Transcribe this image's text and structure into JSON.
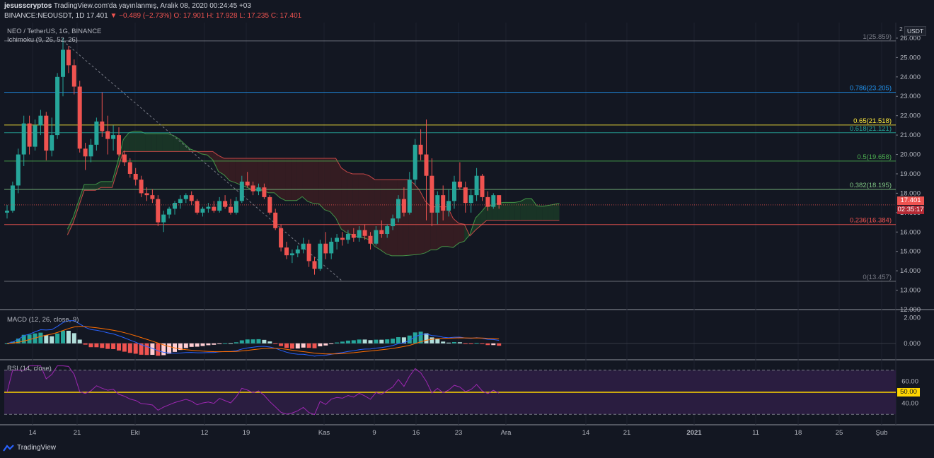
{
  "header": {
    "author": "jesusscryptos",
    "published": "TradingView.com'da yayınlanmış, Aralık 08, 2020 00:24:45 +03",
    "symbol_line": "BINANCE:NEOUSDT, 1D",
    "last": "17.401",
    "change": "▼ −0.489 (−2.73%)",
    "open": "O: 17.901",
    "high": "H: 17.928",
    "low": "L: 17.235",
    "close": "C: 17.401"
  },
  "main_panel": {
    "title": "NEO / TetherUS, 1G, BINANCE",
    "indicator": "Ichimoku (9, 26, 52, 26)",
    "unit": "USDT",
    "price_ticks": [
      "26.000",
      "25.000",
      "24.000",
      "23.000",
      "22.000",
      "21.000",
      "20.000",
      "19.000",
      "18.000",
      "17.000",
      "16.000",
      "15.000",
      "14.000",
      "13.000",
      "12.000"
    ],
    "current_price": "17.401",
    "countdown": "02:35:17",
    "axis_top_label": "2"
  },
  "fib_levels": [
    {
      "label": "1(25.859)",
      "value": 25.859,
      "color": "#787b86"
    },
    {
      "label": "0.786(23.205)",
      "value": 23.205,
      "color": "#2196f3"
    },
    {
      "label": "0.65(21.518)",
      "value": 21.518,
      "color": "#ffeb3b"
    },
    {
      "label": "0.618(21.121)",
      "value": 21.121,
      "color": "#26a69a"
    },
    {
      "label": "0.5(19.658)",
      "value": 19.658,
      "color": "#4caf50"
    },
    {
      "label": "0.382(18.195)",
      "value": 18.195,
      "color": "#81c784"
    },
    {
      "label": "0.236(16.384)",
      "value": 16.384,
      "color": "#ef5350"
    },
    {
      "label": "0(13.457)",
      "value": 13.457,
      "color": "#787b86"
    }
  ],
  "macd_panel": {
    "label": "MACD (12, 26, close, 9)",
    "ticks": [
      "2.000",
      "0.000"
    ]
  },
  "rsi_panel": {
    "label": "RSI (14, close)",
    "ticks": [
      "60.00",
      "40.00"
    ],
    "value_badge": "50.00"
  },
  "time_axis": [
    "14",
    "21",
    "Eki",
    "12",
    "19",
    "Kas",
    "9",
    "16",
    "23",
    "Ara",
    "14",
    "21",
    "2021",
    "11",
    "18",
    "25",
    "Şub"
  ],
  "footer": {
    "brand": "TradingView"
  },
  "colors": {
    "up": "#26a69a",
    "down": "#ef5350",
    "bg": "#131722",
    "cloud_bull": "#1b3a27",
    "cloud_bear": "#3b1d22"
  },
  "chart_data": {
    "type": "candlestick",
    "title": "NEO / TetherUS, 1G, BINANCE",
    "ohlc": [
      [
        17.0,
        17.4,
        16.7,
        17.1
      ],
      [
        17.1,
        18.6,
        17.0,
        18.4
      ],
      [
        18.4,
        20.3,
        18.0,
        20.0
      ],
      [
        20.0,
        22.0,
        19.4,
        21.6
      ],
      [
        21.6,
        22.0,
        20.0,
        20.4
      ],
      [
        20.4,
        21.8,
        20.2,
        21.5
      ],
      [
        21.5,
        22.3,
        21.0,
        22.0
      ],
      [
        22.0,
        22.2,
        19.7,
        20.2
      ],
      [
        20.2,
        21.9,
        19.9,
        21.0
      ],
      [
        21.0,
        24.2,
        20.8,
        24.0
      ],
      [
        24.0,
        26.0,
        23.0,
        25.4
      ],
      [
        25.4,
        25.6,
        24.2,
        24.6
      ],
      [
        24.6,
        24.9,
        23.1,
        23.5
      ],
      [
        23.5,
        23.8,
        20.1,
        20.3
      ],
      [
        20.3,
        20.6,
        19.2,
        19.9
      ],
      [
        19.9,
        20.8,
        19.6,
        20.5
      ],
      [
        20.5,
        21.9,
        20.2,
        21.7
      ],
      [
        21.7,
        23.2,
        20.9,
        21.2
      ],
      [
        21.2,
        22.0,
        20.0,
        20.8
      ],
      [
        20.8,
        21.5,
        20.2,
        21.0
      ],
      [
        21.0,
        21.4,
        19.9,
        20.0
      ],
      [
        20.0,
        20.2,
        19.4,
        19.6
      ],
      [
        19.6,
        19.8,
        18.8,
        19.0
      ],
      [
        19.0,
        19.3,
        18.4,
        18.7
      ],
      [
        18.7,
        18.9,
        17.8,
        18.0
      ],
      [
        18.0,
        18.3,
        17.6,
        17.9
      ],
      [
        17.9,
        18.2,
        17.5,
        17.7
      ],
      [
        17.7,
        17.9,
        16.3,
        16.5
      ],
      [
        16.5,
        17.1,
        16.0,
        16.9
      ],
      [
        16.9,
        17.3,
        16.7,
        17.2
      ],
      [
        17.2,
        17.6,
        16.9,
        17.5
      ],
      [
        17.5,
        17.9,
        17.2,
        17.7
      ],
      [
        17.7,
        18.0,
        17.5,
        17.9
      ],
      [
        17.9,
        18.1,
        17.4,
        17.6
      ],
      [
        17.6,
        17.7,
        16.9,
        17.0
      ],
      [
        17.0,
        17.3,
        16.8,
        17.2
      ],
      [
        17.2,
        17.5,
        17.0,
        17.3
      ],
      [
        17.3,
        17.6,
        17.0,
        17.1
      ],
      [
        17.1,
        17.8,
        17.0,
        17.6
      ],
      [
        17.6,
        17.9,
        17.2,
        17.3
      ],
      [
        17.3,
        17.7,
        16.9,
        17.0
      ],
      [
        17.0,
        17.8,
        16.9,
        17.6
      ],
      [
        17.6,
        18.9,
        17.5,
        18.6
      ],
      [
        18.6,
        19.1,
        18.3,
        18.4
      ],
      [
        18.4,
        18.6,
        17.9,
        18.1
      ],
      [
        18.1,
        18.5,
        17.9,
        18.3
      ],
      [
        18.3,
        18.5,
        17.7,
        17.8
      ],
      [
        17.8,
        17.9,
        16.9,
        17.0
      ],
      [
        17.0,
        17.2,
        16.1,
        16.2
      ],
      [
        16.2,
        16.4,
        15.0,
        15.2
      ],
      [
        15.2,
        15.5,
        14.6,
        14.8
      ],
      [
        14.8,
        15.1,
        14.4,
        14.9
      ],
      [
        14.9,
        15.3,
        14.7,
        15.1
      ],
      [
        15.1,
        15.7,
        14.9,
        15.4
      ],
      [
        15.4,
        15.6,
        14.2,
        14.5
      ],
      [
        14.5,
        14.7,
        13.8,
        14.1
      ],
      [
        14.1,
        15.6,
        14.0,
        15.4
      ],
      [
        15.4,
        16.0,
        14.6,
        14.9
      ],
      [
        14.9,
        15.7,
        14.6,
        15.5
      ],
      [
        15.5,
        15.9,
        15.1,
        15.7
      ],
      [
        15.7,
        16.0,
        15.3,
        15.6
      ],
      [
        15.6,
        16.1,
        15.4,
        15.9
      ],
      [
        15.9,
        16.2,
        15.5,
        15.7
      ],
      [
        15.7,
        16.3,
        15.5,
        16.1
      ],
      [
        16.1,
        16.4,
        15.6,
        15.8
      ],
      [
        15.8,
        16.0,
        15.1,
        15.4
      ],
      [
        15.4,
        16.3,
        15.3,
        16.1
      ],
      [
        16.1,
        16.6,
        15.7,
        15.9
      ],
      [
        15.9,
        16.4,
        15.7,
        16.3
      ],
      [
        16.3,
        16.9,
        16.1,
        16.7
      ],
      [
        16.7,
        17.9,
        16.5,
        17.7
      ],
      [
        17.7,
        18.3,
        16.8,
        17.0
      ],
      [
        17.0,
        19.1,
        16.9,
        18.7
      ],
      [
        18.7,
        20.8,
        18.4,
        20.5
      ],
      [
        20.5,
        21.3,
        19.7,
        20.0
      ],
      [
        20.0,
        21.8,
        16.6,
        18.9
      ],
      [
        18.9,
        19.8,
        16.3,
        17.0
      ],
      [
        17.0,
        18.1,
        16.4,
        17.9
      ],
      [
        17.9,
        18.4,
        16.6,
        17.1
      ],
      [
        17.1,
        18.2,
        16.8,
        17.6
      ],
      [
        17.6,
        18.9,
        17.2,
        18.6
      ],
      [
        18.6,
        19.6,
        18.2,
        18.3
      ],
      [
        18.3,
        18.6,
        17.0,
        17.5
      ],
      [
        17.5,
        18.2,
        17.0,
        17.9
      ],
      [
        17.9,
        19.3,
        17.6,
        18.9
      ],
      [
        18.9,
        19.0,
        17.6,
        17.8
      ],
      [
        17.8,
        18.1,
        17.1,
        17.3
      ],
      [
        17.3,
        18.0,
        17.2,
        17.9
      ],
      [
        17.9,
        17.9,
        17.2,
        17.4
      ]
    ],
    "ylim": [
      12.0,
      26.8
    ],
    "fibonacci": [
      1,
      0.786,
      0.65,
      0.618,
      0.5,
      0.382,
      0.236,
      0
    ],
    "macd_ylim": [
      -1.0,
      2.3
    ],
    "rsi_ylim": [
      25,
      75
    ],
    "rsi_bands": [
      70,
      50,
      30
    ]
  }
}
